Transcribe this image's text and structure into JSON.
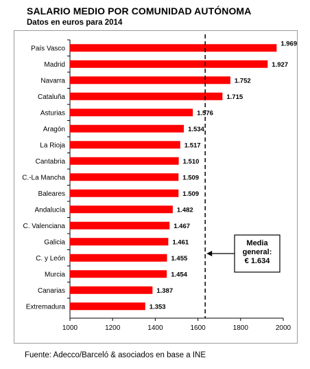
{
  "header": {
    "title": "SALARIO MEDIO POR COMUNIDAD AUTÓNOMA",
    "subtitle": "Datos en euros para 2014"
  },
  "footer": {
    "source": "Fuente: Adecco/Barceló & asociados en base a INE"
  },
  "colors": {
    "bar": "#ff0000",
    "text": "#000000",
    "frame": "#9a9a9a"
  },
  "chart_data": {
    "type": "bar",
    "orientation": "horizontal",
    "title": "SALARIO MEDIO POR COMUNIDAD AUTÓNOMA",
    "subtitle": "Datos en euros para 2014",
    "xlabel": "",
    "ylabel": "",
    "xlim": [
      1000,
      2000
    ],
    "x_ticks": [
      1000,
      1200,
      1400,
      1600,
      1800,
      2000
    ],
    "grid": false,
    "categories": [
      "País Vasco",
      "Madrid",
      "Navarra",
      "Cataluña",
      "Asturias",
      "Aragón",
      "La Rioja",
      "Cantabria",
      "C.-La Mancha",
      "Baleares",
      "Andalucía",
      "C. Valenciana",
      "Galicia",
      "C. y León",
      "Murcia",
      "Canarias",
      "Extremadura"
    ],
    "values": [
      1969,
      1927,
      1752,
      1715,
      1576,
      1534,
      1517,
      1510,
      1509,
      1509,
      1482,
      1467,
      1461,
      1455,
      1454,
      1387,
      1353
    ],
    "value_labels": [
      "1.969",
      "1.927",
      "1.752",
      "1.715",
      "1.576",
      "1.534",
      "1.517",
      "1.510",
      "1.509",
      "1.509",
      "1.482",
      "1.467",
      "1.461",
      "1.455",
      "1.454",
      "1.387",
      "1.353"
    ],
    "reference_line": {
      "value": 1634,
      "style": "dashed",
      "annotation_lines": [
        "Media",
        "general:",
        "€ 1.634"
      ]
    }
  }
}
